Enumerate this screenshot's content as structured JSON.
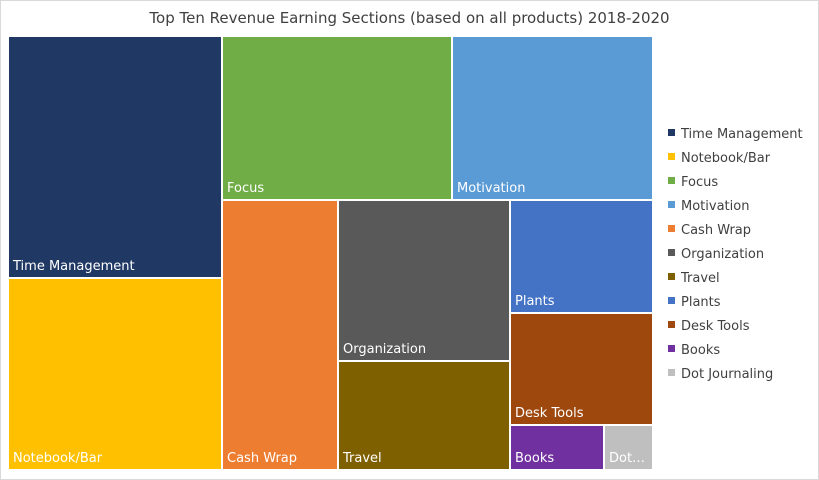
{
  "chart_data": {
    "type": "treemap",
    "title": "Top Ten Revenue Earning Sections (based on all products) 2018-2020",
    "legend_position": "right",
    "items": [
      {
        "name": "Time Management",
        "color": "#203864",
        "label": "Time Management"
      },
      {
        "name": "Notebook/Bar",
        "color": "#FFC000",
        "label": "Notebook/Bar"
      },
      {
        "name": "Focus",
        "color": "#70AD47",
        "label": "Focus"
      },
      {
        "name": "Motivation",
        "color": "#5B9BD5",
        "label": "Motivation"
      },
      {
        "name": "Cash Wrap",
        "color": "#ED7D31",
        "label": "Cash Wrap"
      },
      {
        "name": "Organization",
        "color": "#595959",
        "label": "Organization"
      },
      {
        "name": "Travel",
        "color": "#7F6000",
        "label": "Travel"
      },
      {
        "name": "Plants",
        "color": "#4472C4",
        "label": "Plants"
      },
      {
        "name": "Desk Tools",
        "color": "#9E480E",
        "label": "Desk Tools"
      },
      {
        "name": "Books",
        "color": "#7030A0",
        "label": "Books"
      },
      {
        "name": "Dot Journaling",
        "color": "#BFBFBF",
        "label": "Dot…"
      }
    ]
  }
}
